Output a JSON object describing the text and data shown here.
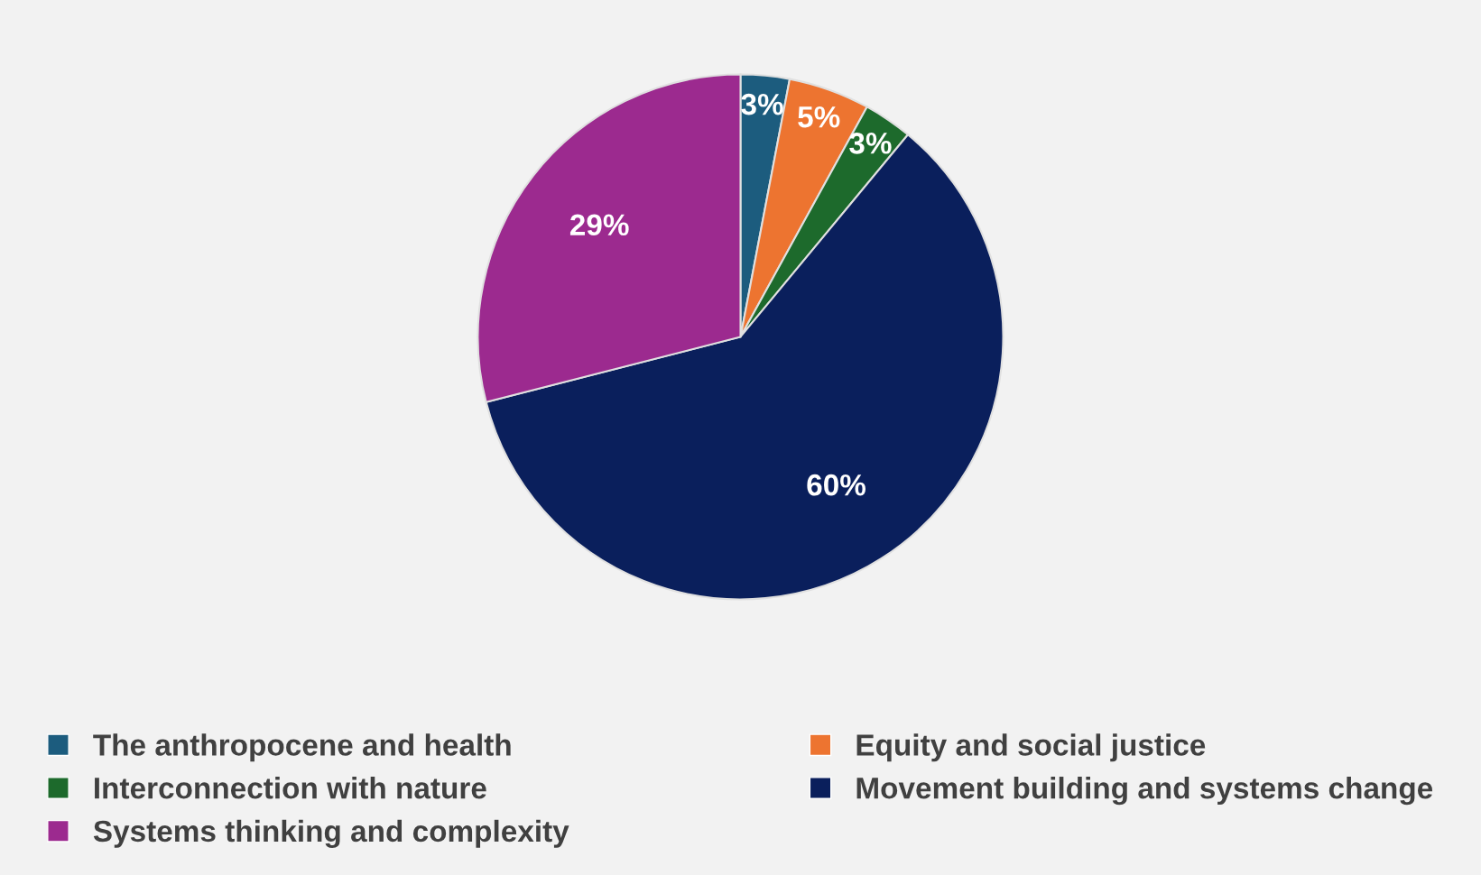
{
  "chart_data": {
    "type": "pie",
    "categories": [
      "The anthropocene and health",
      "Equity and social justice",
      "Interconnection with nature",
      "Movement building and systems change",
      "Systems thinking and complexity"
    ],
    "values": [
      3,
      5,
      3,
      60,
      29
    ],
    "value_labels": [
      "3%",
      "5%",
      "3%",
      "60%",
      "29%"
    ],
    "colors": [
      "#1c5c7e",
      "#ed7430",
      "#1d6a2c",
      "#0a1f5c",
      "#9c2a8f"
    ],
    "legend": "bottom"
  }
}
